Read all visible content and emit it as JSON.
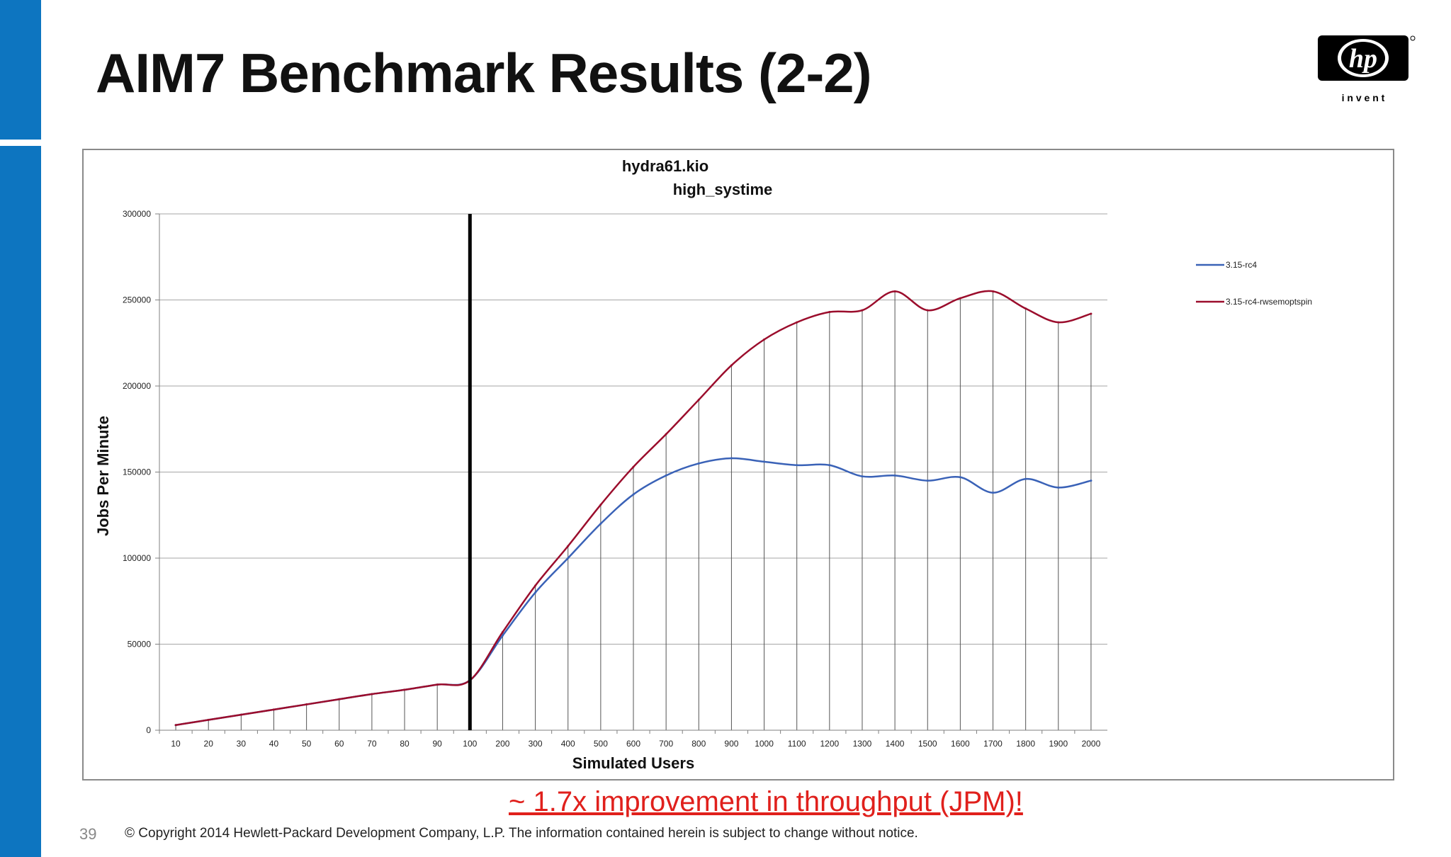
{
  "slide": {
    "title": "AIM7 Benchmark Results (2-2)",
    "note": "~ 1.7x improvement in throughput (JPM)!",
    "page_number": "39",
    "copyright": "© Copyright 2014 Hewlett-Packard Development Company, L.P.  The information contained herein is subject to change without notice.",
    "logo": {
      "mark": "hp",
      "tagline": "i n v e n t"
    },
    "colors": {
      "accent_bar": "#0d75c0",
      "note": "#e0201c"
    }
  },
  "chart_data": {
    "type": "line",
    "title": "hydra61.kio",
    "subtitle": "high_systime",
    "xlabel": "Simulated Users",
    "ylabel": "Jobs Per Minute",
    "categories": [
      "10",
      "20",
      "30",
      "40",
      "50",
      "60",
      "70",
      "80",
      "90",
      "100",
      "200",
      "300",
      "400",
      "500",
      "600",
      "700",
      "800",
      "900",
      "1000",
      "1100",
      "1200",
      "1300",
      "1400",
      "1500",
      "1600",
      "1700",
      "1800",
      "1900",
      "2000"
    ],
    "y_ticks": [
      "0",
      "50000",
      "100000",
      "150000",
      "200000",
      "250000",
      "300000"
    ],
    "ylim": [
      0,
      300000
    ],
    "grid": "horizontal",
    "legend_position": "right",
    "marker_category": "100",
    "series": [
      {
        "name": "3.15-rc4",
        "color": "#3a62b7",
        "values": [
          3000,
          6000,
          9000,
          12000,
          15000,
          18000,
          21000,
          23500,
          26500,
          29000,
          55000,
          80000,
          100000,
          120000,
          137000,
          148000,
          155000,
          158000,
          156000,
          154000,
          154000,
          147500,
          148000,
          145000,
          147000,
          138000,
          146000,
          141000,
          145000
        ]
      },
      {
        "name": "3.15-rc4-rwsemoptspin",
        "color": "#9b0d2c",
        "values": [
          3000,
          6000,
          9000,
          12000,
          15000,
          18000,
          21000,
          23500,
          26500,
          29000,
          57000,
          84000,
          107000,
          131000,
          153000,
          172000,
          192000,
          212000,
          227000,
          237000,
          243000,
          244000,
          255000,
          244000,
          251000,
          255000,
          245000,
          237000,
          242000
        ]
      }
    ]
  }
}
